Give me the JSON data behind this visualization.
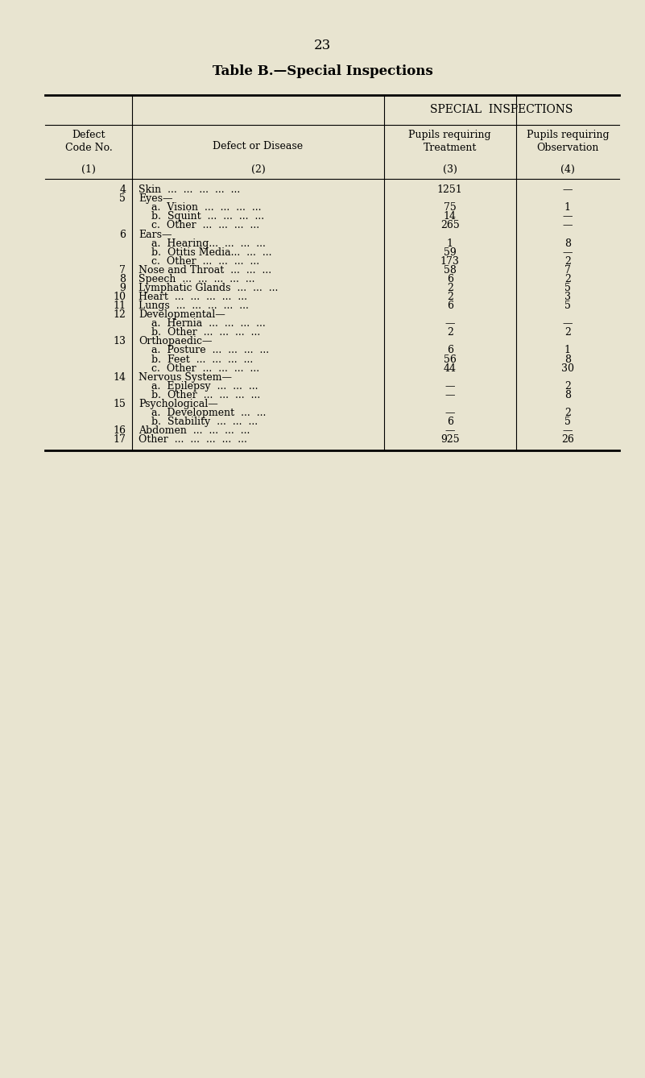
{
  "page_number": "23",
  "title": "Table B.—Special Inspections",
  "bg_color": "#e8e4d0",
  "special_inspections_header": "SPECIAL  INSPECTIONS",
  "rows": [
    {
      "code": "4",
      "disease": "Skin  ...  ...  ...  ...  ...",
      "treatment": "1251",
      "observation": "—"
    },
    {
      "code": "5",
      "disease": "Eyes—",
      "treatment": "",
      "observation": ""
    },
    {
      "code": "",
      "disease": "    a.  Vision  ...  ...  ...  ...",
      "treatment": "75",
      "observation": "1"
    },
    {
      "code": "",
      "disease": "    b.  Squint  ...  ...  ...  ...",
      "treatment": "14",
      "observation": "—"
    },
    {
      "code": "",
      "disease": "    c.  Other  ...  ...  ...  ...",
      "treatment": "265",
      "observation": "—"
    },
    {
      "code": "6",
      "disease": "Ears—",
      "treatment": "",
      "observation": ""
    },
    {
      "code": "",
      "disease": "    a.  Hearing...  ...  ...  ...",
      "treatment": "1",
      "observation": "8"
    },
    {
      "code": "",
      "disease": "    b.  Otitis Media...  ...  ...",
      "treatment": "59",
      "observation": "—"
    },
    {
      "code": "",
      "disease": "    c.  Other  ...  ...  ...  ...",
      "treatment": "173",
      "observation": "2"
    },
    {
      "code": "7",
      "disease": "Nose and Throat  ...  ...  ...",
      "treatment": "58",
      "observation": "7"
    },
    {
      "code": "8",
      "disease": "Speech  ...  ...  ...  ...  ...",
      "treatment": "6",
      "observation": "2"
    },
    {
      "code": "9",
      "disease": "Lymphatic Glands  ...  ...  ...",
      "treatment": "2",
      "observation": "5"
    },
    {
      "code": "10",
      "disease": "Heart  ...  ...  ...  ...  ...",
      "treatment": "2",
      "observation": "3"
    },
    {
      "code": "11",
      "disease": "Lungs  ...  ...  ...  ...  ...",
      "treatment": "6",
      "observation": "5"
    },
    {
      "code": "12",
      "disease": "Developmental—",
      "treatment": "",
      "observation": ""
    },
    {
      "code": "",
      "disease": "    a.  Hernia  ...  ...  ...  ...",
      "treatment": "—",
      "observation": "—"
    },
    {
      "code": "",
      "disease": "    b.  Other  ...  ...  ...  ...",
      "treatment": "2",
      "observation": "2"
    },
    {
      "code": "13",
      "disease": "Orthopaedic—",
      "treatment": "",
      "observation": ""
    },
    {
      "code": "",
      "disease": "    a.  Posture  ...  ...  ...  ...",
      "treatment": "6",
      "observation": "1"
    },
    {
      "code": "",
      "disease": "    b.  Feet  ...  ...  ...  ...",
      "treatment": "56",
      "observation": "8"
    },
    {
      "code": "",
      "disease": "    c.  Other  ...  ...  ...  ...",
      "treatment": "44",
      "observation": "30"
    },
    {
      "code": "14",
      "disease": "Nervous System—",
      "treatment": "",
      "observation": ""
    },
    {
      "code": "",
      "disease": "    a.  Epilepsy  ...  ...  ...",
      "treatment": "—",
      "observation": "2"
    },
    {
      "code": "",
      "disease": "    b.  Other  ...  ...  ...  ...",
      "treatment": "—",
      "observation": "8"
    },
    {
      "code": "15",
      "disease": "Psychological—",
      "treatment": "",
      "observation": ""
    },
    {
      "code": "",
      "disease": "    a.  Development  ...  ...",
      "treatment": "—",
      "observation": "2"
    },
    {
      "code": "",
      "disease": "    b.  Stability  ...  ...  ...",
      "treatment": "6",
      "observation": "5"
    },
    {
      "code": "16",
      "disease": "Abdomen  ...  ...  ...  ...",
      "treatment": "—",
      "observation": "—"
    },
    {
      "code": "17",
      "disease": "Other  ...  ...  ...  ...  ...",
      "treatment": "925",
      "observation": "26"
    }
  ]
}
